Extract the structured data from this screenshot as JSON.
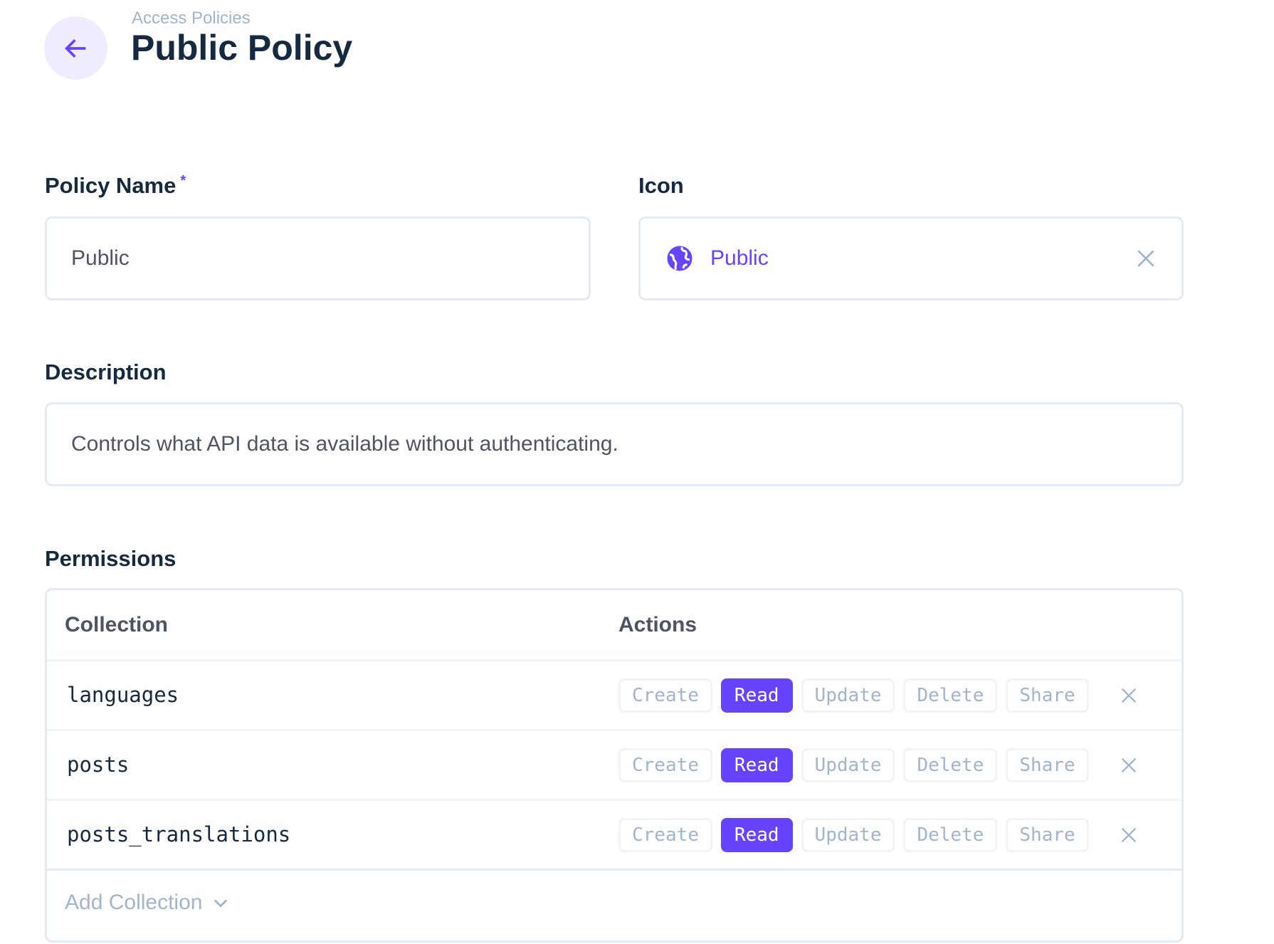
{
  "header": {
    "breadcrumb": "Access Policies",
    "title": "Public Policy",
    "back_icon": "arrow-left-icon"
  },
  "form": {
    "policy_name": {
      "label": "Policy Name",
      "required_mark": "*",
      "value": "Public"
    },
    "icon": {
      "label": "Icon",
      "value": "Public",
      "icon": "globe-icon"
    },
    "description": {
      "label": "Description",
      "value": "Controls what API data is available without authenticating."
    }
  },
  "permissions": {
    "label": "Permissions",
    "columns": [
      "Collection",
      "Actions"
    ],
    "rows": [
      {
        "collection": "languages",
        "actions": [
          "Create",
          "Read",
          "Update",
          "Delete",
          "Share"
        ],
        "enabled": [
          "Read"
        ]
      },
      {
        "collection": "posts",
        "actions": [
          "Create",
          "Read",
          "Update",
          "Delete",
          "Share"
        ],
        "enabled": [
          "Read"
        ]
      },
      {
        "collection": "posts_translations",
        "actions": [
          "Create",
          "Read",
          "Update",
          "Delete",
          "Share"
        ],
        "enabled": [
          "Read"
        ]
      }
    ],
    "add_label": "Add Collection"
  },
  "colors": {
    "accent": "#6644ff",
    "text": "#172940",
    "muted": "#a2b5cd",
    "border": "#e4eaf1"
  }
}
